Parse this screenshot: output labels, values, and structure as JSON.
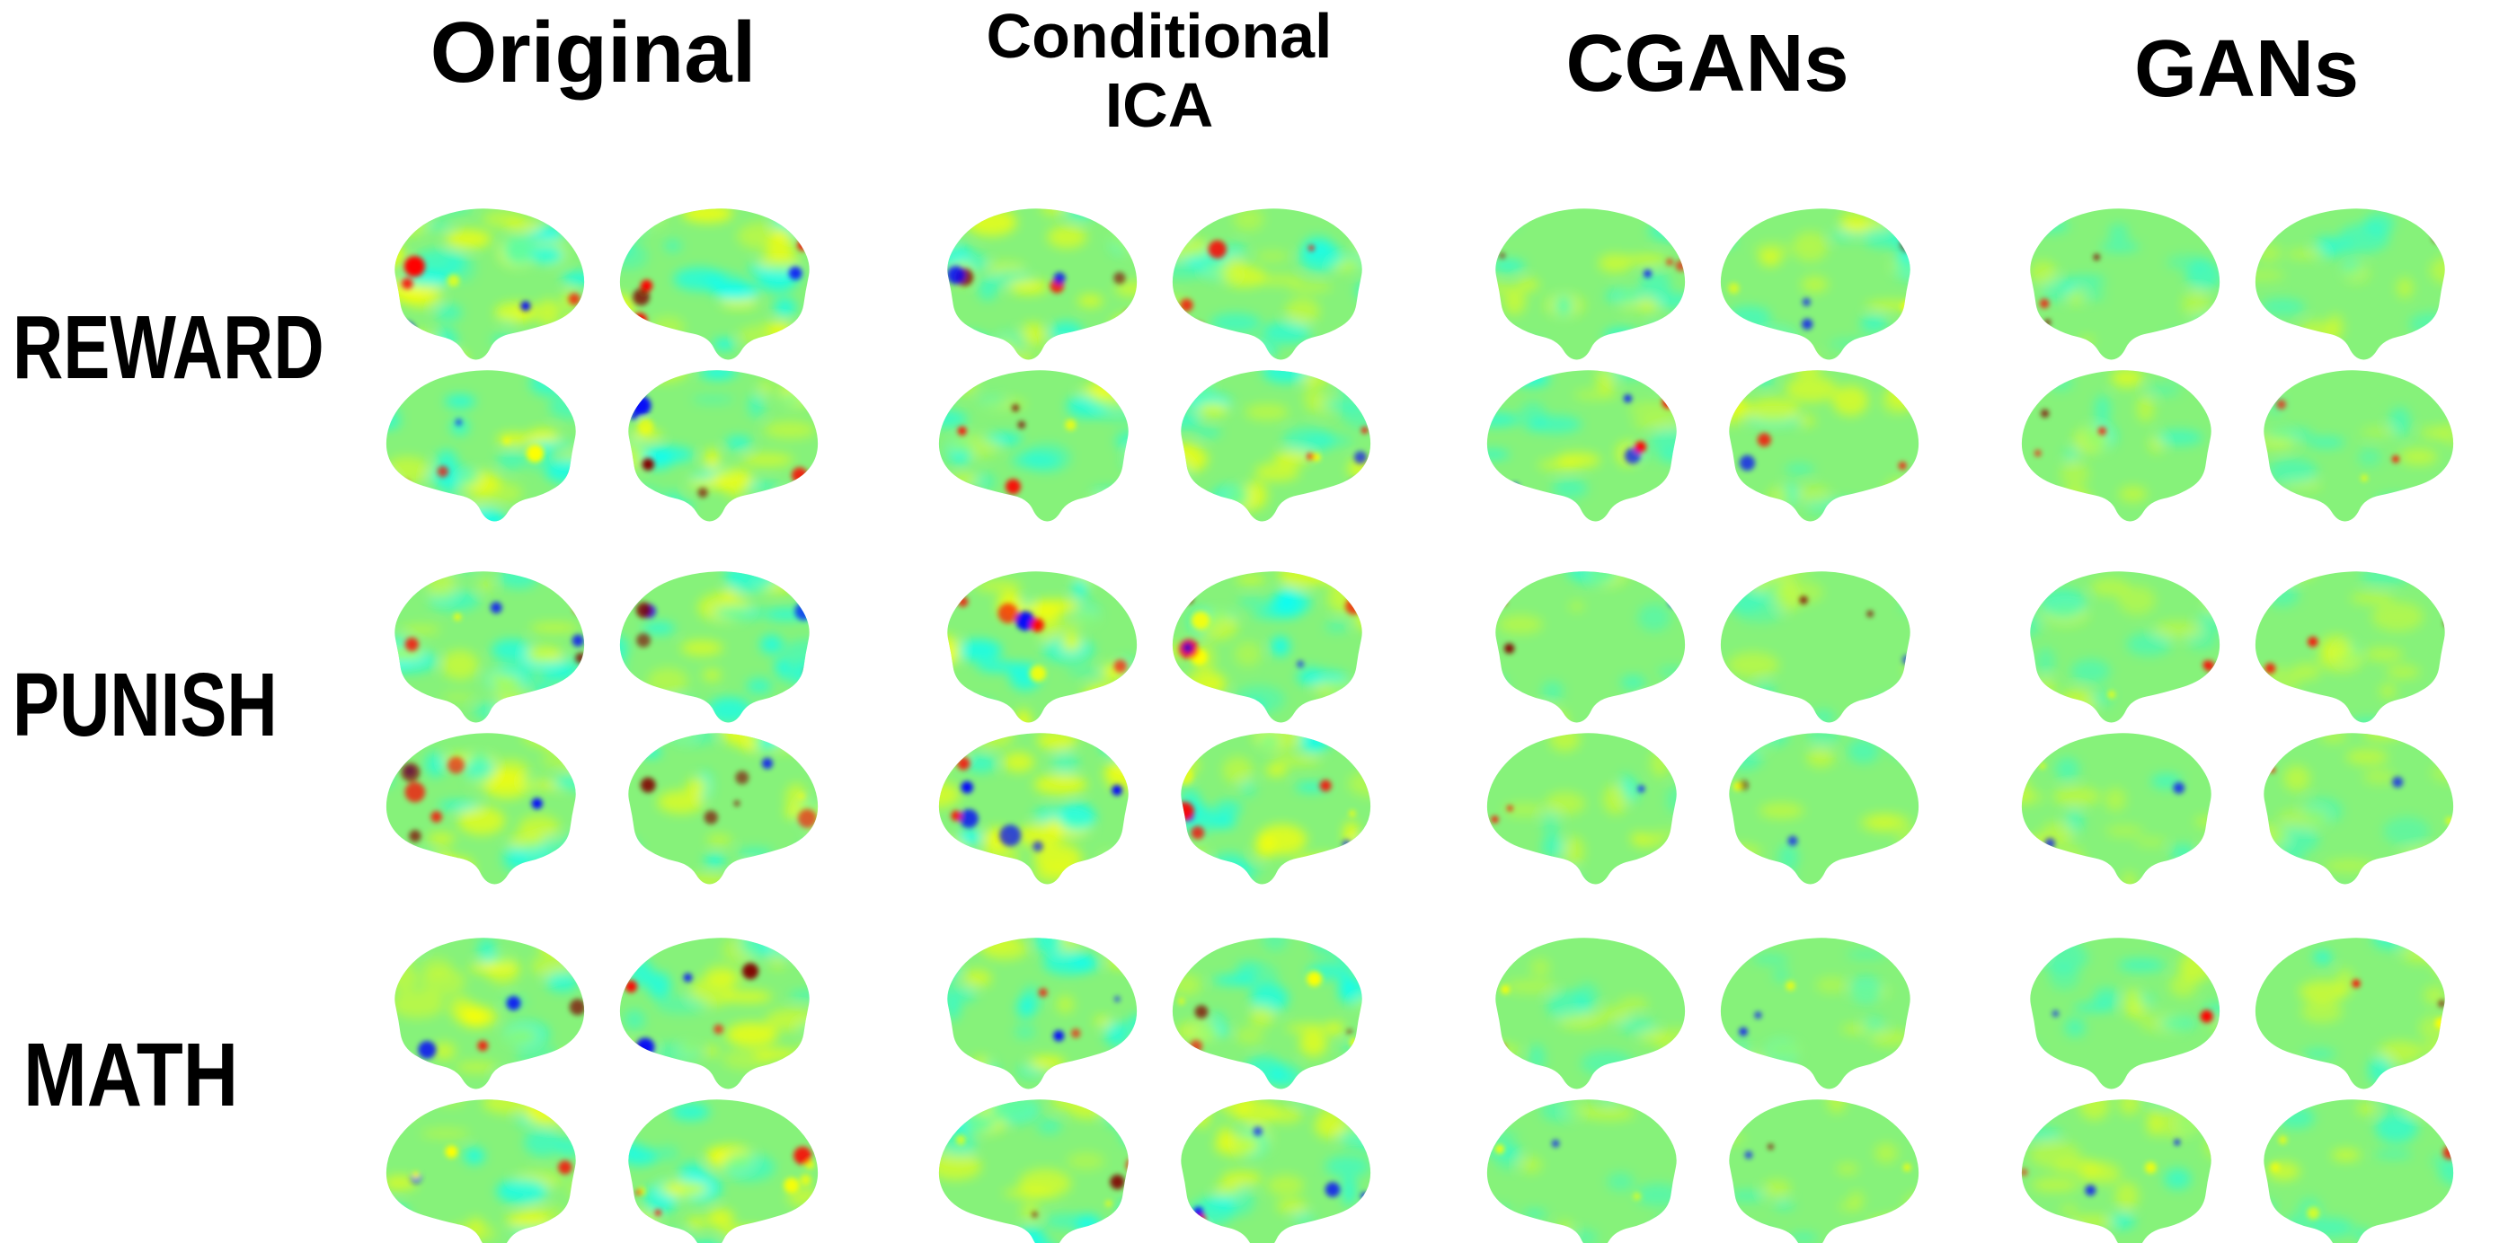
{
  "columns": [
    {
      "id": "original",
      "label": "Original"
    },
    {
      "id": "conditional-ica",
      "label": "Conditional\nICA"
    },
    {
      "id": "cgans",
      "label": "CGANs"
    },
    {
      "id": "gans",
      "label": "GANs"
    }
  ],
  "rows": [
    {
      "id": "reward",
      "label": "REWARD"
    },
    {
      "id": "punish",
      "label": "PUNISH"
    },
    {
      "id": "math",
      "label": "MATH"
    }
  ],
  "colormap": {
    "name": "jet",
    "background": "#ffffff",
    "neutral": "#86f27a",
    "stops": [
      "#00008f",
      "#0000ff",
      "#00ffff",
      "#80ff80",
      "#ffff00",
      "#ff0000",
      "#800000"
    ]
  },
  "activation_levels": {
    "original": {
      "reward": 0.9,
      "punish": 0.85,
      "math": 0.8
    },
    "conditional-ica": {
      "reward": 0.75,
      "punish": 0.9,
      "math": 0.75
    },
    "cgans": {
      "reward": 0.6,
      "punish": 0.3,
      "math": 0.25
    },
    "gans": {
      "reward": 0.3,
      "punish": 0.35,
      "math": 0.45
    }
  }
}
